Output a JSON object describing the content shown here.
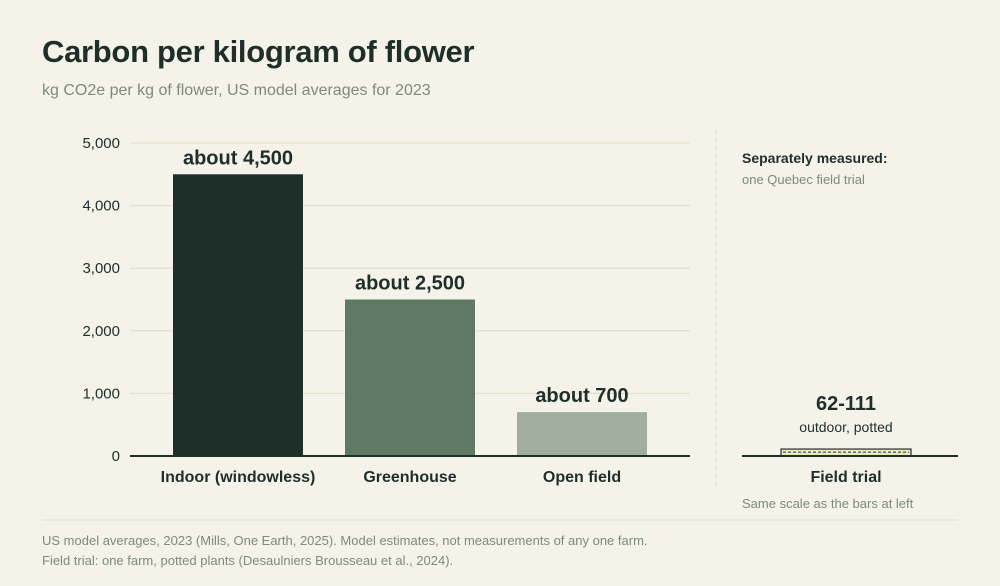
{
  "header": {
    "title": "Carbon per kilogram of flower",
    "subtitle": "kg CO2e per kg of flower, US model averages for 2023"
  },
  "chart_data": [
    {
      "type": "bar",
      "categories": [
        "Indoor (windowless)",
        "Greenhouse",
        "Open field"
      ],
      "values": [
        4500,
        2500,
        700
      ],
      "data_labels": [
        "about 4,500",
        "about 2,500",
        "about 700"
      ],
      "yticks": [
        "0",
        "1,000",
        "2,000",
        "3,000",
        "4,000",
        "5,000"
      ],
      "ytick_values": [
        0,
        1000,
        2000,
        3000,
        4000,
        5000
      ],
      "ylim": [
        0,
        5000
      ],
      "grid": true,
      "colors": [
        "#1e2f2a",
        "#5f7a63",
        "#a2ae9d"
      ]
    },
    {
      "type": "bar",
      "categories": [
        "Field trial"
      ],
      "range": [
        62,
        111
      ],
      "data_label": "62-111",
      "data_sublabel": "outdoor, potted",
      "ylim": [
        0,
        5000
      ],
      "heading": "Separately measured:",
      "subheading": "one Quebec field trial",
      "note": "Same scale as the bars at left",
      "colors": [
        "#eee8bf"
      ]
    }
  ],
  "footer": {
    "line1": "US model averages, 2023 (Mills, One Earth, 2025). Model estimates, not measurements of any one farm.",
    "line2": "Field trial: one farm, potted plants (Desaulniers Brousseau et al., 2024)."
  }
}
